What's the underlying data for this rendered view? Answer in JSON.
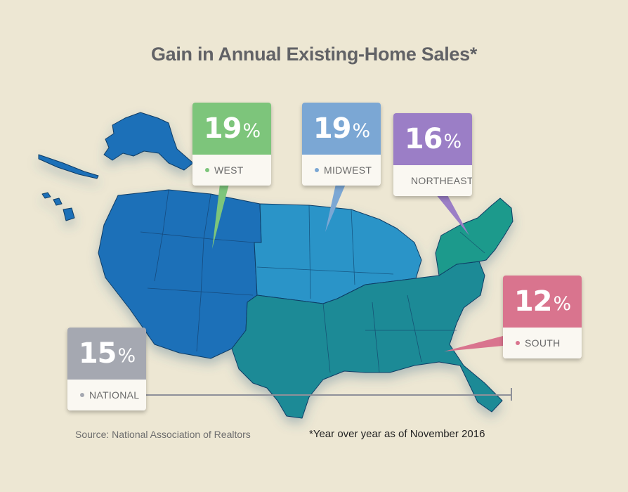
{
  "title": "Gain in Annual Existing-Home Sales*",
  "source": "Source: National Association of Realtors",
  "footnote": "*Year over year as of November 2016",
  "colors": {
    "background": "#ede7d3",
    "west": "#7dc57b",
    "midwest": "#7ba7d4",
    "northeast": "#9b7ec6",
    "south": "#d9748e",
    "national": "#a5a8b1",
    "map_west": "#1e6fb8",
    "map_midwest": "#2a94c8",
    "map_northeast": "#1d9a8c",
    "map_south": "#1d8a96"
  },
  "chart_data": {
    "type": "table",
    "title": "Gain in Annual Existing-Home Sales*",
    "unit": "%",
    "categories": [
      "WEST",
      "MIDWEST",
      "NORTHEAST",
      "SOUTH",
      "NATIONAL"
    ],
    "values": [
      19,
      19,
      16,
      12,
      15
    ]
  },
  "regions": {
    "west": {
      "value": "19",
      "unit": "%",
      "label": "WEST"
    },
    "midwest": {
      "value": "19",
      "unit": "%",
      "label": "MIDWEST"
    },
    "northeast": {
      "value": "16",
      "unit": "%",
      "label": "NORTHEAST"
    },
    "south": {
      "value": "12",
      "unit": "%",
      "label": "SOUTH"
    },
    "national": {
      "value": "15",
      "unit": "%",
      "label": "NATIONAL"
    }
  }
}
